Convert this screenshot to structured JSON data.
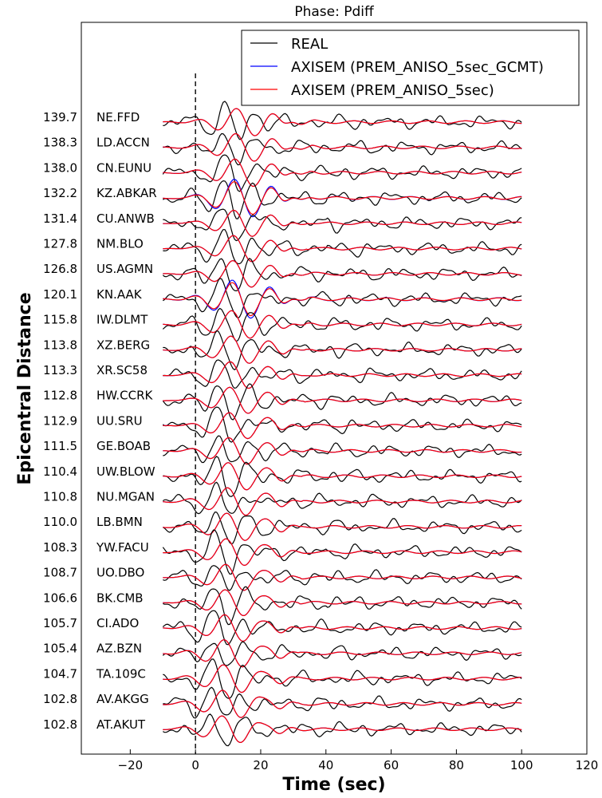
{
  "chart_data": {
    "type": "line",
    "title": "Phase: Pdiff",
    "xlabel": "Time (sec)",
    "ylabel": "Epicentral Distance",
    "xlim": [
      -35,
      120
    ],
    "x_ticks": [
      -20,
      0,
      20,
      40,
      60,
      80,
      100,
      120
    ],
    "x_tick_labels": [
      "−20",
      "0",
      "20",
      "40",
      "60",
      "80",
      "100",
      "120"
    ],
    "grid": false,
    "legend_position": "top-right",
    "phase_marker_time": 0,
    "trace_time_range": [
      -10,
      100
    ],
    "legend": [
      {
        "name": "REAL",
        "color": "#000000"
      },
      {
        "name": "AXISEM (PREM_ANISO_5sec_GCMT)",
        "color": "#0000ff"
      },
      {
        "name": "AXISEM (PREM_ANISO_5sec)",
        "color": "#ff0000"
      }
    ],
    "traces": [
      {
        "station": "NE.FFD",
        "distance": "139.7"
      },
      {
        "station": "LD.ACCN",
        "distance": "138.3"
      },
      {
        "station": "CN.EUNU",
        "distance": "138.0"
      },
      {
        "station": "KZ.ABKAR",
        "distance": "132.2"
      },
      {
        "station": "CU.ANWB",
        "distance": "131.4"
      },
      {
        "station": "NM.BLO",
        "distance": "127.8"
      },
      {
        "station": "US.AGMN",
        "distance": "126.8"
      },
      {
        "station": "KN.AAK",
        "distance": "120.1"
      },
      {
        "station": "IW.DLMT",
        "distance": "115.8"
      },
      {
        "station": "XZ.BERG",
        "distance": "113.8"
      },
      {
        "station": "XR.SC58",
        "distance": "113.3"
      },
      {
        "station": "HW.CCRK",
        "distance": "112.8"
      },
      {
        "station": "UU.SRU",
        "distance": "112.9"
      },
      {
        "station": "GE.BOAB",
        "distance": "111.5"
      },
      {
        "station": "UW.BLOW",
        "distance": "110.4"
      },
      {
        "station": "NU.MGAN",
        "distance": "110.8"
      },
      {
        "station": "LB.BMN",
        "distance": "110.0"
      },
      {
        "station": "YW.FACU",
        "distance": "108.3"
      },
      {
        "station": "UO.DBO",
        "distance": "108.7"
      },
      {
        "station": "BK.CMB",
        "distance": "106.6"
      },
      {
        "station": "CI.ADO",
        "distance": "105.7"
      },
      {
        "station": "AZ.BZN",
        "distance": "105.4"
      },
      {
        "station": "TA.109C",
        "distance": "104.7"
      },
      {
        "station": "AV.AKGG",
        "distance": "102.8"
      },
      {
        "station": "AT.AKUT",
        "distance": "102.8"
      }
    ]
  }
}
